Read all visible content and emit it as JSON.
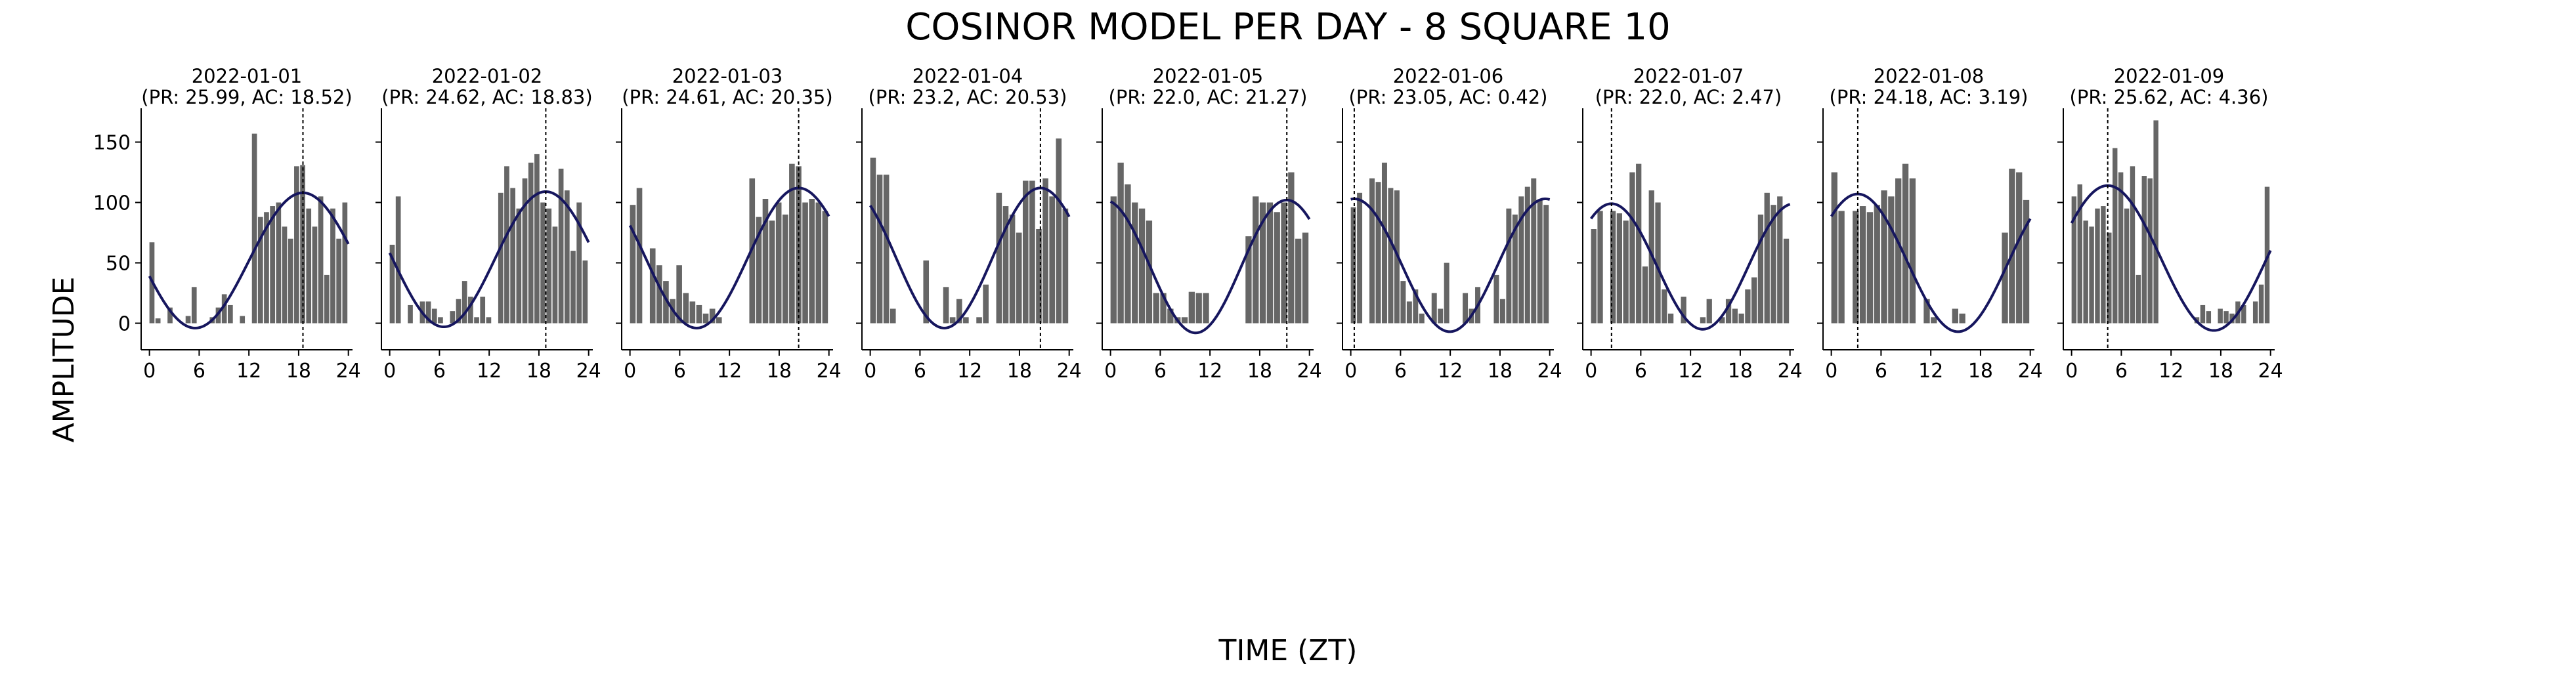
{
  "figure": {
    "title": "COSINOR MODEL PER DAY - 8 SQUARE 10",
    "xlabel": "TIME (ZT)",
    "ylabel": "AMPLITUDE"
  },
  "chart_data": {
    "type": "bar",
    "title": "COSINOR MODEL PER DAY - 8 SQUARE 10",
    "xlabel": "TIME (ZT)",
    "ylabel": "AMPLITUDE",
    "xlim": [
      -1,
      24.5
    ],
    "ylim": [
      -22,
      178
    ],
    "xticks": [
      0,
      6,
      12,
      18,
      24
    ],
    "yticks": [
      0,
      50,
      100,
      150
    ],
    "bar_color": "#666666",
    "fit_color": "#16165e",
    "acrophase_line_color": "#000000",
    "grid": false,
    "panels": [
      {
        "date": "2022-01-01",
        "subtitle": "(PR: 25.99, AC: 18.52)",
        "period": 25.99,
        "acrophase": 18.52,
        "mesor": 52,
        "amplitude": 56,
        "values": [
          67,
          4,
          0,
          13,
          0,
          0,
          6,
          30,
          0,
          0,
          5,
          13,
          24,
          15,
          0,
          6,
          0,
          157,
          88,
          92,
          97,
          100,
          80,
          70,
          130,
          131,
          95,
          80,
          105,
          40,
          95,
          70,
          100
        ]
      },
      {
        "date": "2022-01-02",
        "subtitle": "(PR: 24.62, AC: 18.83)",
        "period": 24.62,
        "acrophase": 18.83,
        "mesor": 53,
        "amplitude": 56,
        "values": [
          65,
          105,
          0,
          15,
          0,
          18,
          18,
          12,
          5,
          0,
          10,
          20,
          35,
          22,
          5,
          22,
          5,
          0,
          108,
          130,
          112,
          95,
          120,
          133,
          140,
          100,
          95,
          80,
          128,
          110,
          60,
          100,
          52
        ]
      },
      {
        "date": "2022-01-03",
        "subtitle": "(PR: 24.61, AC: 20.35)",
        "period": 24.61,
        "acrophase": 20.35,
        "mesor": 54,
        "amplitude": 58,
        "values": [
          98,
          112,
          0,
          62,
          48,
          35,
          20,
          48,
          25,
          18,
          15,
          8,
          12,
          5,
          0,
          0,
          0,
          0,
          120,
          88,
          103,
          85,
          100,
          90,
          132,
          130,
          100,
          103,
          100,
          93
        ]
      },
      {
        "date": "2022-01-04",
        "subtitle": "(PR: 23.2, AC: 20.53)",
        "period": 23.2,
        "acrophase": 20.53,
        "mesor": 54,
        "amplitude": 58,
        "values": [
          137,
          123,
          123,
          12,
          0,
          0,
          0,
          0,
          52,
          0,
          0,
          30,
          5,
          20,
          5,
          0,
          5,
          32,
          0,
          108,
          97,
          90,
          75,
          118,
          118,
          78,
          120,
          105,
          153,
          95
        ]
      },
      {
        "date": "2022-01-05",
        "subtitle": "(PR: 22.0, AC: 21.27)",
        "period": 22.0,
        "acrophase": 21.27,
        "mesor": 47,
        "amplitude": 55,
        "values": [
          105,
          133,
          115,
          100,
          95,
          85,
          25,
          25,
          12,
          5,
          5,
          26,
          25,
          25,
          0,
          0,
          0,
          0,
          0,
          72,
          105,
          100,
          100,
          92,
          100,
          125,
          70,
          75
        ]
      },
      {
        "date": "2022-01-06",
        "subtitle": "(PR: 23.05, AC: 0.42)",
        "period": 23.05,
        "acrophase": 0.42,
        "mesor": 48,
        "amplitude": 55,
        "values": [
          96,
          108,
          0,
          120,
          117,
          133,
          112,
          110,
          35,
          18,
          28,
          8,
          0,
          25,
          12,
          50,
          0,
          0,
          25,
          12,
          30,
          0,
          0,
          40,
          20,
          95,
          90,
          105,
          113,
          120,
          102,
          98
        ]
      },
      {
        "date": "2022-01-07",
        "subtitle": "(PR: 22.0, AC: 2.47)",
        "period": 22.0,
        "acrophase": 2.47,
        "mesor": 47,
        "amplitude": 52,
        "values": [
          78,
          93,
          0,
          93,
          91,
          85,
          125,
          132,
          47,
          110,
          100,
          28,
          8,
          0,
          22,
          0,
          0,
          5,
          20,
          0,
          5,
          20,
          12,
          8,
          28,
          38,
          90,
          108,
          98,
          105,
          70
        ]
      },
      {
        "date": "2022-01-08",
        "subtitle": "(PR: 24.18, AC: 3.19)",
        "period": 24.18,
        "acrophase": 3.19,
        "mesor": 50,
        "amplitude": 57,
        "values": [
          125,
          93,
          0,
          93,
          97,
          92,
          98,
          110,
          105,
          120,
          132,
          120,
          0,
          20,
          5,
          0,
          0,
          12,
          8,
          0,
          0,
          0,
          0,
          0,
          75,
          128,
          125,
          102
        ]
      },
      {
        "date": "2022-01-09",
        "subtitle": "(PR: 25.62, AC: 4.36)",
        "period": 25.62,
        "acrophase": 4.36,
        "mesor": 54,
        "amplitude": 60,
        "values": [
          105,
          115,
          85,
          80,
          95,
          97,
          75,
          145,
          125,
          95,
          130,
          40,
          122,
          120,
          168,
          0,
          0,
          0,
          0,
          0,
          0,
          5,
          15,
          10,
          0,
          12,
          10,
          8,
          18,
          15,
          0,
          18,
          32,
          113
        ]
      }
    ]
  }
}
